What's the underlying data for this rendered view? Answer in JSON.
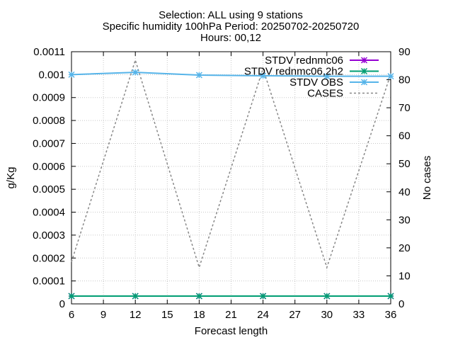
{
  "chart_data": {
    "type": "line",
    "title_lines": [
      "Selection: ALL using     9 stations",
      "Specific humidity 100hPa   Period: 20250702-20250720",
      "Hours: 00,12"
    ],
    "xlabel": "Forecast length",
    "ylabel": "g/Kg",
    "y2label": "No cases",
    "xlim": [
      6,
      36
    ],
    "ylim": [
      0,
      0.0011
    ],
    "y2lim": [
      0,
      90
    ],
    "xticks": [
      6,
      9,
      12,
      15,
      18,
      21,
      24,
      27,
      30,
      33,
      36
    ],
    "yticks": [
      "0",
      "0.0001",
      "0.0002",
      "0.0003",
      "0.0004",
      "0.0005",
      "0.0006",
      "0.0007",
      "0.0008",
      "0.0009",
      "0.001",
      "0.0011"
    ],
    "y2ticks": [
      0,
      10,
      20,
      30,
      40,
      50,
      60,
      70,
      80,
      90
    ],
    "grid": true,
    "legend_position": "top-right",
    "x": [
      6,
      12,
      18,
      24,
      30,
      36
    ],
    "series": [
      {
        "name": "STDV rednmc06",
        "axis": "y",
        "color": "#9400d3",
        "style": "solid-markers",
        "values": [
          3.4e-05,
          3.4e-05,
          3.4e-05,
          3.4e-05,
          3.4e-05,
          3.4e-05
        ]
      },
      {
        "name": "STDV rednmc06,2h2",
        "axis": "y",
        "color": "#009e73",
        "style": "solid-markers",
        "values": [
          3.4e-05,
          3.4e-05,
          3.4e-05,
          3.4e-05,
          3.4e-05,
          3.4e-05
        ]
      },
      {
        "name": "STDV OBS",
        "axis": "y",
        "color": "#56b4e9",
        "style": "solid-markers",
        "values": [
          0.001,
          0.00101,
          0.000998,
          0.000995,
          0.000993,
          0.000993
        ]
      },
      {
        "name": "CASES",
        "axis": "y2",
        "color": "#888888",
        "style": "dashed",
        "values": [
          15,
          87,
          13,
          84,
          13,
          82
        ]
      }
    ]
  }
}
